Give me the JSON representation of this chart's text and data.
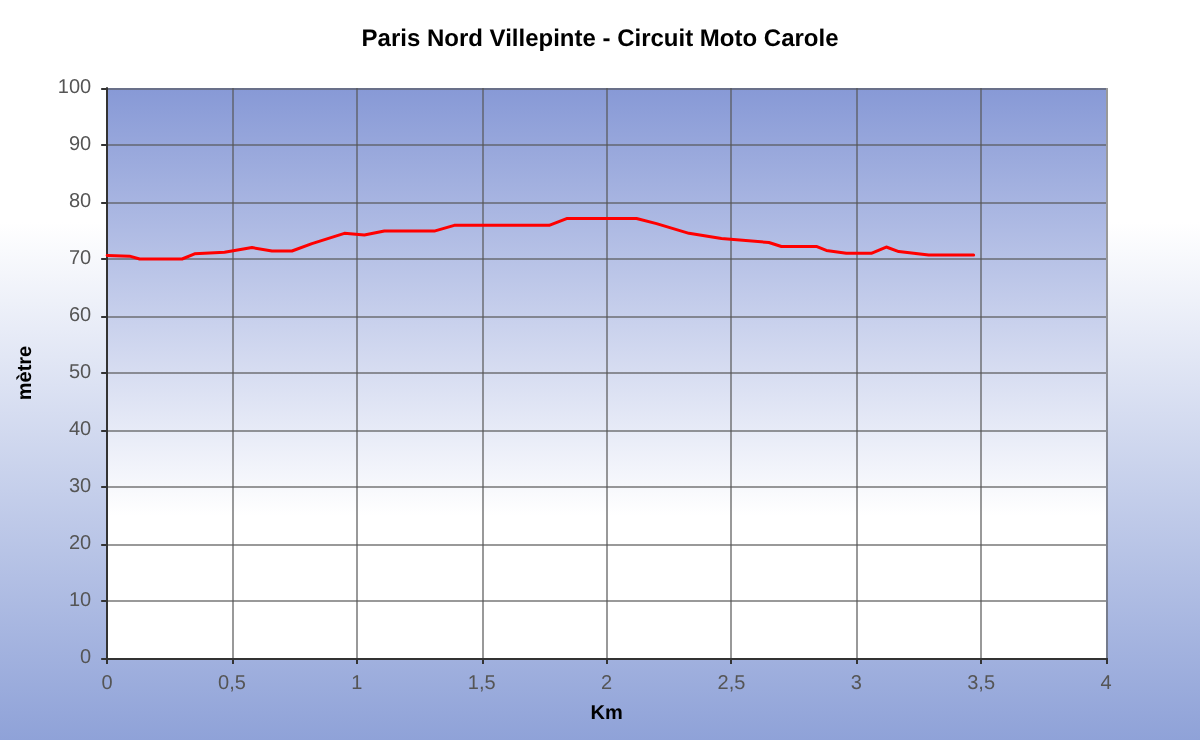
{
  "chart_data": {
    "type": "line",
    "title": "Paris Nord Villepinte - Circuit Moto Carole",
    "xlabel": "Km",
    "ylabel": "mètre",
    "x": [
      0,
      0.09,
      0.13,
      0.3,
      0.35,
      0.47,
      0.58,
      0.66,
      0.74,
      0.82,
      0.95,
      1.03,
      1.11,
      1.31,
      1.39,
      1.77,
      1.84,
      2.12,
      2.2,
      2.33,
      2.46,
      2.65,
      2.7,
      2.84,
      2.88,
      2.96,
      3.06,
      3.12,
      3.17,
      3.29,
      3.47
    ],
    "series": [
      {
        "color": "#ff0000",
        "values": [
          70.6,
          70.5,
          70,
          70,
          70.9,
          71.2,
          72,
          71.4,
          71.4,
          72.7,
          74.5,
          74.2,
          74.9,
          74.9,
          75.9,
          75.9,
          77.1,
          77.1,
          76.2,
          74.5,
          73.6,
          72.9,
          72.2,
          72.2,
          71.5,
          71,
          71,
          72.1,
          71.3,
          70.7,
          70.7
        ]
      }
    ],
    "xlim": [
      0,
      4
    ],
    "xticks": [
      0,
      {
        "value": 0.5,
        "label": "0,5"
      },
      1,
      {
        "value": 1.5,
        "label": "1,5"
      },
      2,
      {
        "value": 2.5,
        "label": "2,5"
      },
      3,
      {
        "value": 3.5,
        "label": "3,5"
      },
      4
    ],
    "ylim": [
      0,
      100
    ],
    "yticks": [
      0,
      10,
      20,
      30,
      40,
      50,
      60,
      70,
      80,
      90,
      100
    ],
    "grid": true,
    "marker": "none",
    "line_style": "solid"
  }
}
